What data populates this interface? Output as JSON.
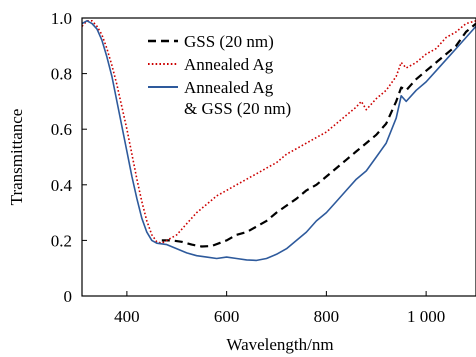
{
  "chart_data": {
    "type": "line",
    "title": "",
    "xlabel": "Wavelength/nm",
    "ylabel": "Transmittance",
    "xlim": [
      310,
      1100
    ],
    "ylim": [
      0,
      1.0
    ],
    "x_ticks": [
      400,
      600,
      800,
      1000
    ],
    "x_tick_labels": [
      "400",
      "600",
      "800",
      "1 000"
    ],
    "y_ticks": [
      0,
      0.2,
      0.4,
      0.6,
      0.8,
      1.0
    ],
    "y_tick_labels": [
      "0",
      "0.2",
      "0.4",
      "0.6",
      "0.8",
      "1.0"
    ],
    "grid": false,
    "legend_position": "top-center",
    "series": [
      {
        "name": "GSS (20 nm)",
        "color": "#000000",
        "style": "dashed",
        "x": [
          470,
          490,
          510,
          530,
          550,
          570,
          600,
          620,
          640,
          660,
          680,
          700,
          720,
          740,
          760,
          780,
          800,
          820,
          840,
          860,
          880,
          900,
          920,
          940,
          950,
          960,
          970,
          980,
          1000,
          1020,
          1040,
          1060,
          1080,
          1100
        ],
        "y": [
          0.2,
          0.2,
          0.195,
          0.185,
          0.178,
          0.18,
          0.2,
          0.22,
          0.23,
          0.25,
          0.27,
          0.3,
          0.325,
          0.35,
          0.38,
          0.4,
          0.43,
          0.46,
          0.49,
          0.52,
          0.55,
          0.58,
          0.62,
          0.7,
          0.75,
          0.74,
          0.76,
          0.78,
          0.81,
          0.84,
          0.87,
          0.9,
          0.95,
          0.98
        ]
      },
      {
        "name": "Annealed Ag",
        "color": "#cc0000",
        "style": "dotted",
        "x": [
          310,
          320,
          330,
          340,
          350,
          360,
          370,
          380,
          390,
          400,
          410,
          420,
          430,
          440,
          450,
          460,
          470,
          480,
          500,
          520,
          540,
          560,
          580,
          600,
          620,
          640,
          660,
          680,
          700,
          720,
          740,
          760,
          780,
          800,
          820,
          840,
          860,
          870,
          880,
          900,
          920,
          940,
          950,
          960,
          980,
          1000,
          1020,
          1040,
          1060,
          1080,
          1100
        ],
        "y": [
          0.97,
          0.99,
          0.99,
          0.97,
          0.94,
          0.89,
          0.83,
          0.76,
          0.68,
          0.6,
          0.51,
          0.42,
          0.34,
          0.27,
          0.22,
          0.195,
          0.19,
          0.2,
          0.22,
          0.26,
          0.3,
          0.33,
          0.36,
          0.38,
          0.4,
          0.42,
          0.44,
          0.46,
          0.48,
          0.51,
          0.53,
          0.55,
          0.57,
          0.59,
          0.62,
          0.65,
          0.68,
          0.7,
          0.67,
          0.71,
          0.74,
          0.79,
          0.84,
          0.82,
          0.84,
          0.87,
          0.89,
          0.93,
          0.95,
          0.98,
          0.99
        ]
      },
      {
        "name": "Annealed Ag & GSS (20 nm)",
        "color": "#2e5a9c",
        "style": "solid",
        "x": [
          310,
          320,
          330,
          340,
          350,
          360,
          370,
          380,
          390,
          400,
          410,
          420,
          430,
          440,
          450,
          460,
          480,
          500,
          520,
          540,
          560,
          580,
          600,
          620,
          640,
          660,
          680,
          700,
          720,
          740,
          760,
          780,
          800,
          820,
          840,
          860,
          880,
          900,
          920,
          940,
          950,
          960,
          980,
          1000,
          1020,
          1040,
          1060,
          1080,
          1100
        ],
        "y": [
          0.98,
          0.99,
          0.98,
          0.96,
          0.92,
          0.86,
          0.79,
          0.7,
          0.61,
          0.52,
          0.43,
          0.35,
          0.28,
          0.23,
          0.2,
          0.19,
          0.185,
          0.17,
          0.155,
          0.145,
          0.14,
          0.135,
          0.14,
          0.135,
          0.13,
          0.128,
          0.135,
          0.15,
          0.17,
          0.2,
          0.23,
          0.27,
          0.3,
          0.34,
          0.38,
          0.42,
          0.45,
          0.5,
          0.55,
          0.64,
          0.72,
          0.7,
          0.74,
          0.77,
          0.81,
          0.85,
          0.89,
          0.93,
          0.97
        ]
      }
    ],
    "legend": {
      "entries": [
        {
          "line1": "GSS (20 nm)",
          "line2": ""
        },
        {
          "line1": "Annealed Ag",
          "line2": ""
        },
        {
          "line1": "Annealed Ag",
          "line2": "& GSS (20 nm)"
        }
      ]
    }
  }
}
